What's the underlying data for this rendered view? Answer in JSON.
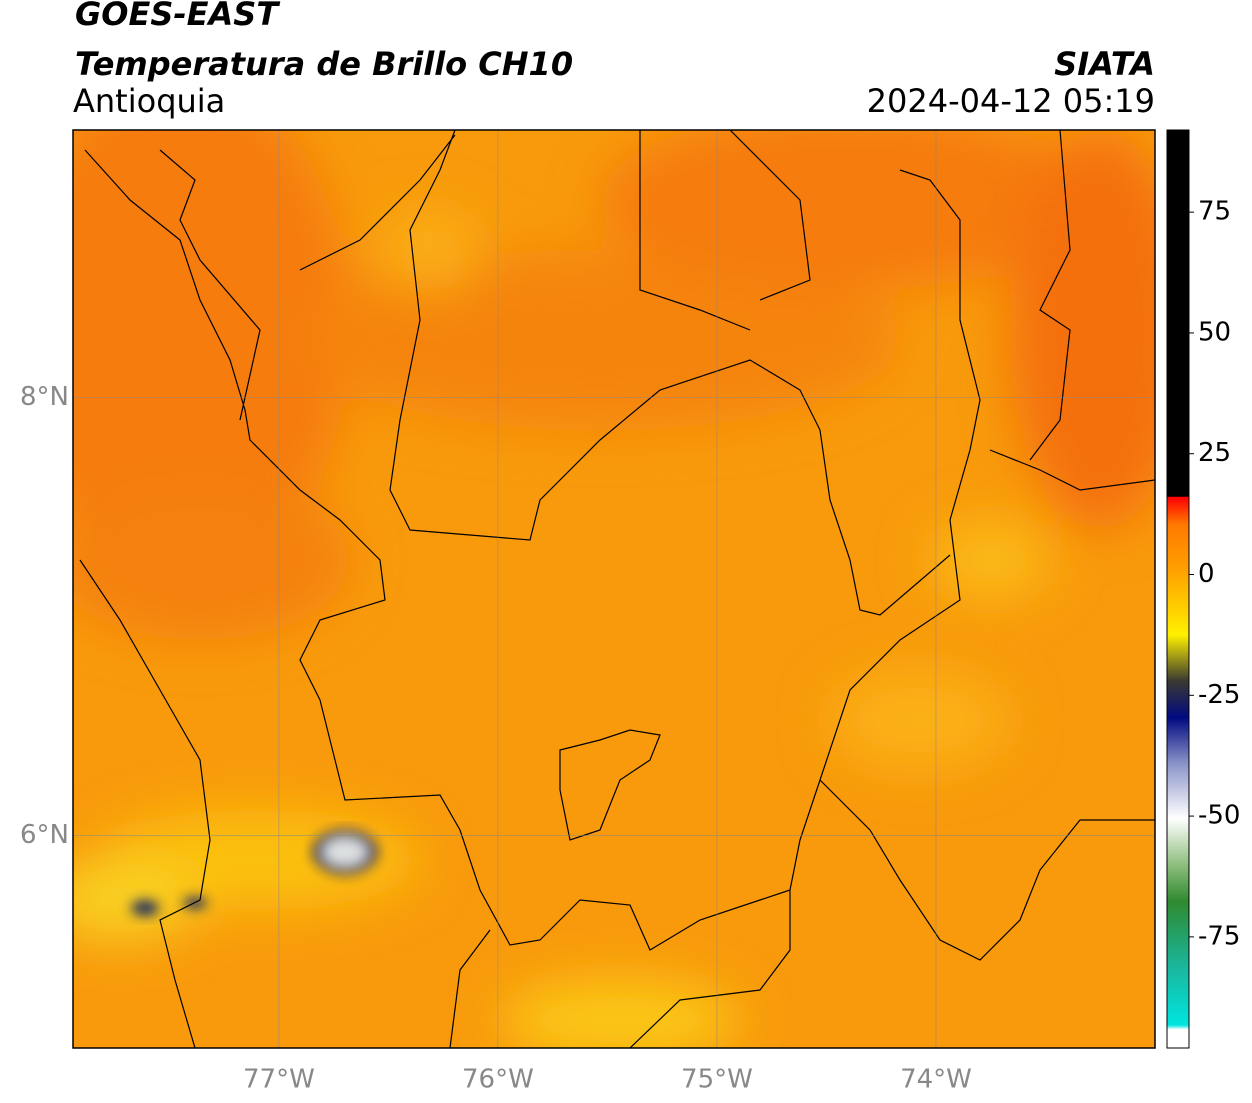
{
  "header": {
    "title": "GOES-EAST",
    "subtitle": "Temperatura de Brillo CH10",
    "region": "Antioquia",
    "source": "SIATA",
    "timestamp": "2024-04-12 05:19"
  },
  "map": {
    "xlim": [
      -77.94,
      -73.0
    ],
    "ylim": [
      5.03,
      9.22
    ],
    "xticks": [
      {
        "value": -77,
        "label": "77°W"
      },
      {
        "value": -76,
        "label": "76°W"
      },
      {
        "value": -75,
        "label": "75°W"
      },
      {
        "value": -74,
        "label": "74°W"
      }
    ],
    "yticks": [
      {
        "value": 8,
        "label": "8°N"
      },
      {
        "value": 6,
        "label": "6°N"
      }
    ],
    "grid": true
  },
  "colorbar": {
    "lim": [
      -98,
      92
    ],
    "ticks": [
      75,
      50,
      25,
      0,
      -25,
      -50,
      -75
    ]
  }
}
